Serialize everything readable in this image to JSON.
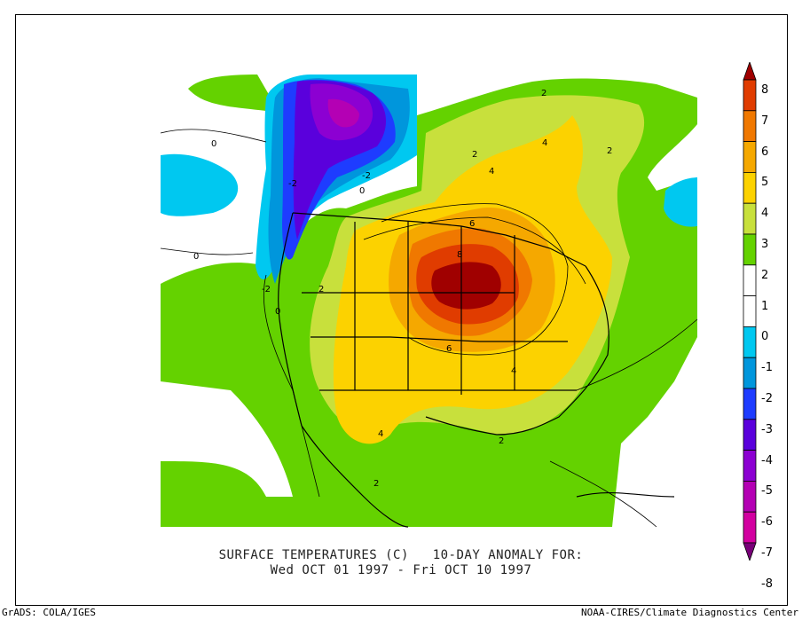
{
  "caption": {
    "line1": "SURFACE TEMPERATURES (C)   10-DAY ANOMALY FOR:",
    "line2": "Wed OCT 01 1997 - Fri OCT 10 1997"
  },
  "credit": {
    "left": "GrADS: COLA/IGES",
    "right": "NOAA-CIRES/Climate Diagnostics Center"
  },
  "colorbar": {
    "levels": [
      {
        "label": "8",
        "color": "#a00000"
      },
      {
        "label": "7",
        "color": "#e03c00"
      },
      {
        "label": "6",
        "color": "#f07800"
      },
      {
        "label": "5",
        "color": "#f5a800"
      },
      {
        "label": "4",
        "color": "#fcd200"
      },
      {
        "label": "3",
        "color": "#c8e03c"
      },
      {
        "label": "2",
        "color": "#64d200"
      },
      {
        "label": "1",
        "color": "#ffffff"
      },
      {
        "label": "0",
        "color": "#ffffff"
      },
      {
        "label": "-1",
        "color": "#00c8f0"
      },
      {
        "label": "-2",
        "color": "#0096dc"
      },
      {
        "label": "-3",
        "color": "#1e3cff"
      },
      {
        "label": "-4",
        "color": "#5a00dc"
      },
      {
        "label": "-5",
        "color": "#8c00d2"
      },
      {
        "label": "-6",
        "color": "#b400b4"
      },
      {
        "label": "-7",
        "color": "#d200a0"
      },
      {
        "label": "-8",
        "color": "#780078"
      }
    ]
  },
  "contour_labels": [
    "0",
    "0",
    "0",
    "0",
    "-2",
    "-2",
    "-2",
    "2",
    "2",
    "2",
    "2",
    "2",
    "2",
    "4",
    "4",
    "4",
    "4",
    "6",
    "6",
    "8"
  ]
}
